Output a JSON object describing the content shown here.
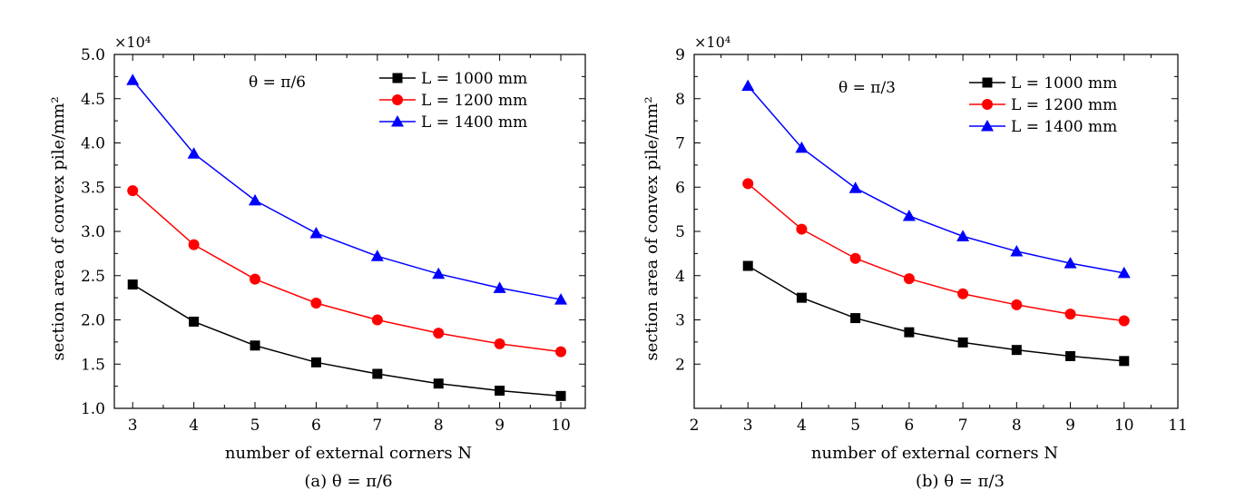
{
  "chart_data": [
    {
      "type": "line",
      "caption": "(a) θ = π/6",
      "annotation": "θ = π/6",
      "scale_note": "×10⁴",
      "xlabel": "number of external corners N",
      "ylabel": "section area of convex pile/mm²",
      "xlim": [
        2.7,
        10.4
      ],
      "ylim": [
        1.0,
        5.0
      ],
      "xticks": [
        3,
        4,
        5,
        6,
        7,
        8,
        9,
        10
      ],
      "yticks": [
        1.0,
        1.5,
        2.0,
        2.5,
        3.0,
        3.5,
        4.0,
        4.5,
        5.0
      ],
      "ytick_labels": [
        "1.0",
        "1.5",
        "2.0",
        "2.5",
        "3.0",
        "3.5",
        "4.0",
        "4.5",
        "5.0"
      ],
      "legend_position": "top-right",
      "x": [
        3,
        4,
        5,
        6,
        7,
        8,
        9,
        10
      ],
      "series": [
        {
          "name": "L = 1000 mm",
          "color": "#000000",
          "marker": "square",
          "values": [
            2.4,
            1.98,
            1.71,
            1.52,
            1.39,
            1.28,
            1.2,
            1.14
          ]
        },
        {
          "name": "L = 1200 mm",
          "color": "#ff0000",
          "marker": "circle",
          "values": [
            3.46,
            2.85,
            2.46,
            2.19,
            2.0,
            1.85,
            1.73,
            1.64
          ]
        },
        {
          "name": "L = 1400 mm",
          "color": "#0000ff",
          "marker": "triangle",
          "values": [
            4.71,
            3.88,
            3.35,
            2.98,
            2.72,
            2.52,
            2.36,
            2.23
          ]
        }
      ]
    },
    {
      "type": "line",
      "caption": "(b) θ = π/3",
      "annotation": "θ = π/3",
      "scale_note": "×10⁴",
      "xlabel": "number of external corners N",
      "ylabel": "section area of convex pile/mm²",
      "xlim": [
        2,
        11
      ],
      "ylim": [
        1,
        9
      ],
      "xticks": [
        2,
        3,
        4,
        5,
        6,
        7,
        8,
        9,
        10,
        11
      ],
      "yticks": [
        2,
        3,
        4,
        5,
        6,
        7,
        8,
        9
      ],
      "ytick_labels": [
        "2",
        "3",
        "4",
        "5",
        "6",
        "7",
        "8",
        "9"
      ],
      "legend_position": "top-right",
      "x": [
        3,
        4,
        5,
        6,
        7,
        8,
        9,
        10
      ],
      "series": [
        {
          "name": "L = 1000 mm",
          "color": "#000000",
          "marker": "square",
          "values": [
            4.22,
            3.5,
            3.04,
            2.72,
            2.49,
            2.32,
            2.18,
            2.07
          ]
        },
        {
          "name": "L = 1200 mm",
          "color": "#ff0000",
          "marker": "circle",
          "values": [
            6.08,
            5.05,
            4.39,
            3.93,
            3.59,
            3.34,
            3.13,
            2.98
          ]
        },
        {
          "name": "L = 1400 mm",
          "color": "#0000ff",
          "marker": "triangle",
          "values": [
            8.29,
            6.89,
            5.98,
            5.35,
            4.89,
            4.55,
            4.28,
            4.06
          ]
        }
      ]
    }
  ]
}
